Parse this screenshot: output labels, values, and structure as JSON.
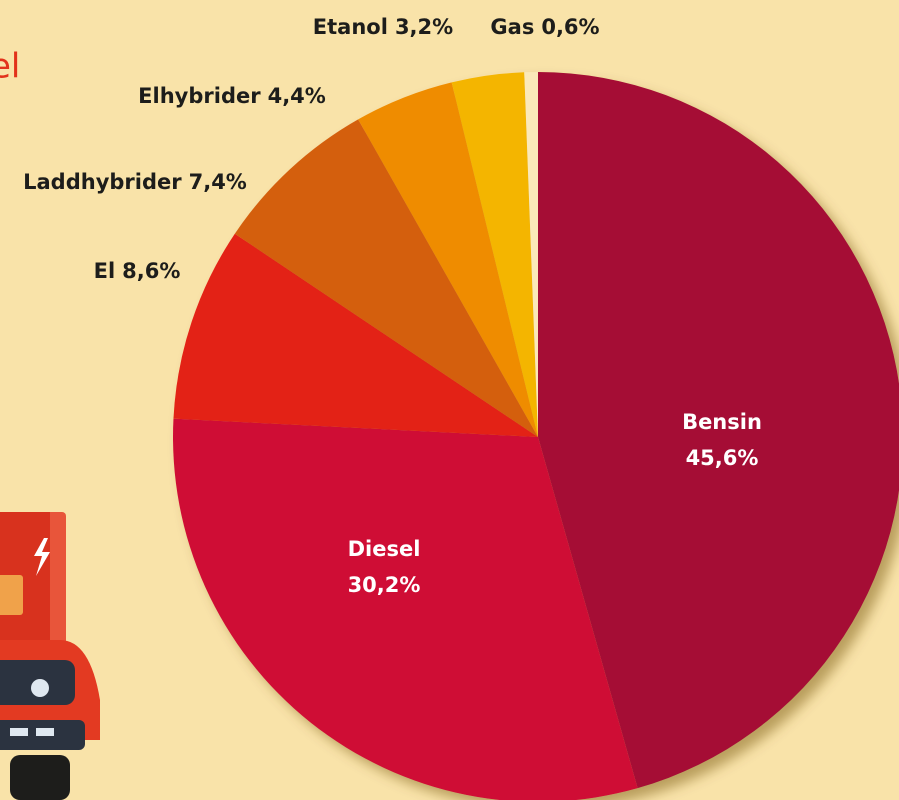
{
  "chart_data": {
    "type": "pie",
    "title": "el",
    "categories": [
      "Bensin",
      "Diesel",
      "El",
      "Laddhybrider",
      "Elhybrider",
      "Etanol",
      "Gas"
    ],
    "values": [
      45.6,
      30.2,
      8.6,
      7.4,
      4.4,
      3.2,
      0.6
    ],
    "value_labels": [
      "45,6%",
      "30,2%",
      "8,6%",
      "7,4%",
      "4,4%",
      "3,2%",
      "0,6%"
    ],
    "colors": [
      "#a50e34",
      "#cf0a36",
      "#e32213",
      "#d45f0e",
      "#ef8c05",
      "#f4b500",
      "#fbe9b9"
    ]
  }
}
